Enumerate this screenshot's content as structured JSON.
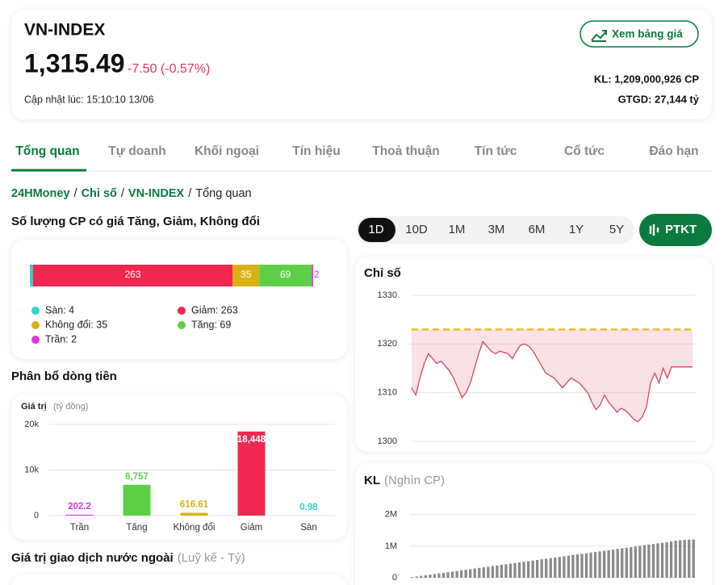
{
  "header": {
    "title": "VN-INDEX",
    "price": "1,315.49",
    "change": "-7.50 (-0.57%)",
    "updated": "Cập nhật lúc: 15:10:10 13/06",
    "button": "Xem bảng giá",
    "volume": "KL: 1,209,000,926 CP",
    "turnover": "GTGD: 27,144 tỷ"
  },
  "tabs": [
    "Tổng quan",
    "Tự doanh",
    "Khối ngoại",
    "Tín hiệu",
    "Thoả thuận",
    "Tín tức",
    "Cổ tức",
    "Đáo hạn"
  ],
  "breadcrumb": {
    "items": [
      "24HMoney",
      "Chỉ số",
      "VN-INDEX",
      "Tổng quan"
    ],
    "separator": "/"
  },
  "breadth": {
    "title": "Số lượng CP có giá Tăng, Giảm, Không đổi",
    "segments": [
      {
        "value": 4,
        "label": "Sàn: 4",
        "color": "#2fd3cd"
      },
      {
        "value": 263,
        "label": "Giảm: 263",
        "color": "#f0284f"
      },
      {
        "value": 35,
        "label": "Không đổi: 35",
        "color": "#d8b214"
      },
      {
        "value": 69,
        "label": "Tăng: 69",
        "color": "#5ccf47"
      },
      {
        "value": 2,
        "label": "Trần: 2",
        "color": "#e433e6"
      }
    ]
  },
  "flow": {
    "type": "bar",
    "title": "Phân bổ dòng tiền",
    "ylabel": "Giá trị",
    "yunit": "(tỷ đồng)",
    "categories": [
      "Trần",
      "Tăng",
      "Không đổi",
      "Giảm",
      "Sàn"
    ],
    "values": [
      202.2,
      6757,
      616.61,
      18448,
      0.98
    ],
    "value_labels": [
      "202.2",
      "6,757",
      "616.61",
      "18,448",
      "0.98"
    ],
    "colors": [
      "#e433e6",
      "#5ccf47",
      "#d8b214",
      "#f0284f",
      "#2fd3cd"
    ],
    "ylim": [
      0,
      20000
    ],
    "yticks": [
      0,
      {
        "value": 10000,
        "label": "10k"
      },
      {
        "value": 20000,
        "label": "20k"
      }
    ]
  },
  "periods": [
    "1D",
    "10D",
    "1M",
    "3M",
    "6M",
    "1Y",
    "5Y"
  ],
  "ta_button": "PTKT",
  "index_chart": {
    "type": "area",
    "title": "Chỉ số",
    "values": [
      1311,
      1309.5,
      1313,
      1316,
      1318,
      1317,
      1316,
      1316.5,
      1315.5,
      1314.5,
      1313,
      1311,
      1309,
      1310,
      1312,
      1315,
      1318,
      1320.5,
      1319.5,
      1318.5,
      1318,
      1318.5,
      1318.3,
      1318,
      1317,
      1318.5,
      1319.8,
      1320,
      1319.5,
      1318.5,
      1317,
      1315.5,
      1314,
      1313.5,
      1313,
      1312,
      1311,
      1312,
      1313,
      1312.5,
      1312,
      1311,
      1310,
      1308,
      1306.5,
      1307.5,
      1309.5,
      1308,
      1307,
      1306,
      1306.8,
      1306.3,
      1305.5,
      1304.5,
      1304,
      1305,
      1307,
      1312,
      1314,
      1312,
      1315,
      1313,
      1315.3,
      1315.3,
      1315.3,
      1315.3,
      1315.3,
      1315.3
    ],
    "reference": 1323,
    "color": "#d9435e",
    "reference_color": "#e8c21a",
    "ylim": [
      1298,
      1331
    ],
    "yticks": [
      1300,
      1310,
      1320,
      1330
    ]
  },
  "volume_chart": {
    "type": "bar",
    "title": "KL",
    "unit": "(Nghìn CP)",
    "color": "#8a8a8a",
    "values": [
      22000,
      41000,
      60000,
      79000,
      98000,
      118000,
      138000,
      157000,
      176000,
      195000,
      214000,
      234000,
      253000,
      272000,
      292000,
      311000,
      330000,
      349000,
      369000,
      388000,
      408000,
      427000,
      446000,
      466000,
      485000,
      505000,
      524000,
      544000,
      563000,
      583000,
      602000,
      621000,
      641000,
      660000,
      680000,
      699000,
      719000,
      738000,
      758000,
      777000,
      797000,
      816000,
      836000,
      855000,
      875000,
      894000,
      914000,
      933000,
      953000,
      972000,
      992000,
      1011000,
      1031000,
      1050000,
      1070000,
      1089000,
      1109000,
      1128000,
      1150000,
      1175000,
      1190000,
      1200000,
      1205000,
      1209000
    ],
    "ylim": [
      0,
      2200000
    ],
    "yticks": [
      0,
      {
        "value": 1000000,
        "label": "1M"
      },
      {
        "value": 2000000,
        "label": "2M"
      }
    ]
  },
  "foreign": {
    "title": "Giá trị giao dịch nước ngoài",
    "unit": "(Luỹ kế - Tỷ)"
  }
}
